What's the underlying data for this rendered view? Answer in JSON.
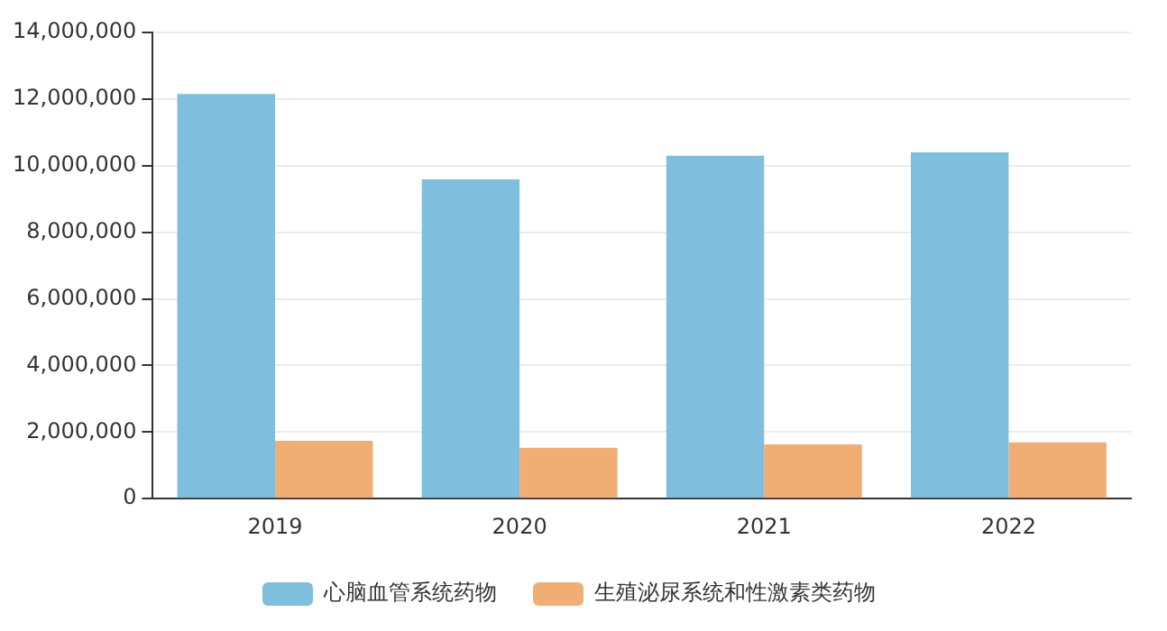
{
  "chart_data": {
    "type": "bar",
    "categories": [
      "2019",
      "2020",
      "2021",
      "2022"
    ],
    "series": [
      {
        "name": "心脑血管系统药物",
        "color": "#7fbfdd",
        "values": [
          12150000,
          9590000,
          10300000,
          10400000
        ]
      },
      {
        "name": "生殖泌尿系统和性激素类药物",
        "color": "#f0ae74",
        "values": [
          1740000,
          1530000,
          1630000,
          1690000
        ]
      }
    ],
    "ylim": [
      0,
      14000000
    ],
    "yticks": [
      {
        "value": 0,
        "label": "0"
      },
      {
        "value": 2000000,
        "label": "2,000,000"
      },
      {
        "value": 4000000,
        "label": "4,000,000"
      },
      {
        "value": 6000000,
        "label": "6,000,000"
      },
      {
        "value": 8000000,
        "label": "8,000,000"
      },
      {
        "value": 10000000,
        "label": "10,000,000"
      },
      {
        "value": 12000000,
        "label": "12,000,000"
      },
      {
        "value": 14000000,
        "label": "14,000,000"
      }
    ],
    "grid": "y",
    "legend": "bottom"
  }
}
